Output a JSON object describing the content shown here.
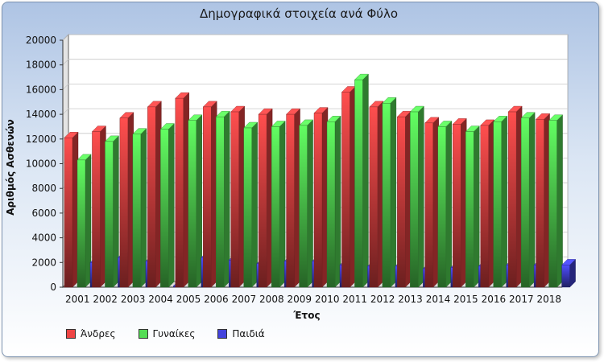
{
  "chart_data": {
    "type": "bar",
    "title": "Δημογραφικά στοιχεία ανά Φύλο",
    "xlabel": "Έτος",
    "ylabel": "Αριθμός Ασθενών",
    "ylim": [
      0,
      20000
    ],
    "yticks": [
      "0",
      "2000",
      "4000",
      "6000",
      "8000",
      "10000",
      "12000",
      "14000",
      "16000",
      "18000",
      "20000"
    ],
    "categories": [
      "2001",
      "2002",
      "2003",
      "2004",
      "2005",
      "2006",
      "2007",
      "2008",
      "2009",
      "2010",
      "2011",
      "2012",
      "2013",
      "2014",
      "2015",
      "2016",
      "2017",
      "2018"
    ],
    "series": [
      {
        "name": "Άνδρες",
        "color": "#ee4444",
        "values": [
          12100,
          12600,
          13700,
          14600,
          15300,
          14600,
          14200,
          14000,
          14000,
          14100,
          15800,
          14600,
          13800,
          13300,
          13200,
          13100,
          14200,
          13600
        ]
      },
      {
        "name": "Γυναίκες",
        "color": "#55dd55",
        "values": [
          10300,
          11800,
          12400,
          12800,
          13500,
          13800,
          12900,
          13000,
          13100,
          13400,
          16800,
          14900,
          14200,
          13000,
          12600,
          13400,
          13700,
          13500
        ]
      },
      {
        "name": "Παιδιά",
        "color": "#4444dd",
        "values": [
          2000,
          2400,
          2100,
          100,
          2400,
          2200,
          1900,
          2100,
          2100,
          1800,
          1700,
          1700,
          1500,
          1600,
          1700,
          1800,
          1800,
          1800
        ]
      }
    ],
    "grid": true,
    "legend_position": "bottom-left"
  }
}
